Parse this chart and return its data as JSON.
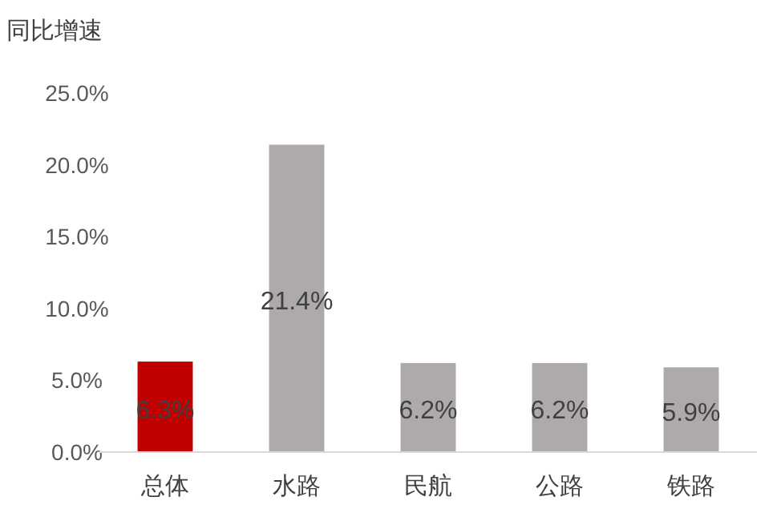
{
  "chart_data": {
    "type": "bar",
    "ylabel": "同比增速",
    "categories": [
      "总体",
      "水路",
      "民航",
      "公路",
      "铁路"
    ],
    "values": [
      6.3,
      21.4,
      6.2,
      6.2,
      5.9
    ],
    "colors": [
      "#c00000",
      "#aeaaaa",
      "#aeaaaa",
      "#aeaaaa",
      "#aeaaaa"
    ],
    "value_labels": [
      "6.3%",
      "21.4%",
      "6.2%",
      "6.2%",
      "5.9%"
    ],
    "ylim": [
      0,
      25
    ],
    "yticks": [
      {
        "value": 0,
        "label": "0.0%"
      },
      {
        "value": 5,
        "label": "5.0%"
      },
      {
        "value": 10,
        "label": "10.0%"
      },
      {
        "value": 15,
        "label": "15.0%"
      },
      {
        "value": 20,
        "label": "20.0%"
      },
      {
        "value": 25,
        "label": "25.0%"
      }
    ],
    "grid": false
  }
}
